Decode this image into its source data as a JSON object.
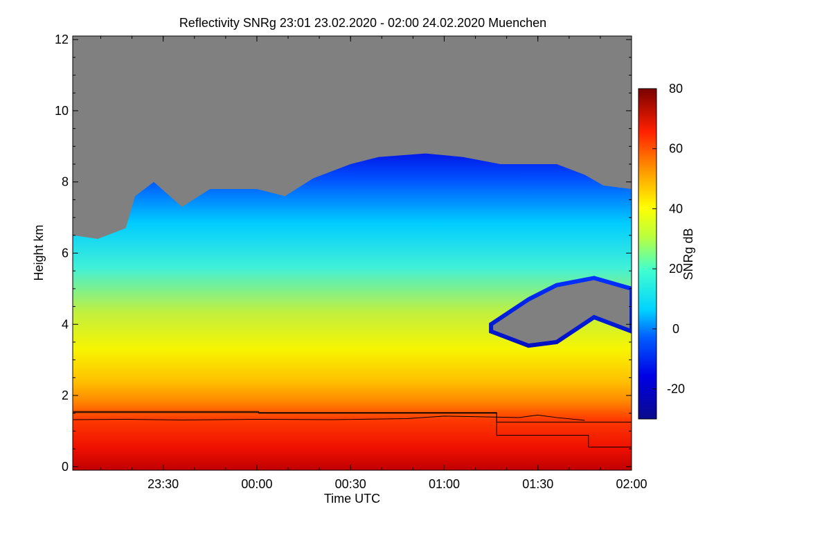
{
  "chart_data": {
    "type": "heatmap",
    "title": "Reflectivity SNRg   23:01 23.02.2020 - 02:00 24.02.2020 Muenchen",
    "xlabel": "Time UTC",
    "ylabel": "Height km",
    "xlim_hours": [
      23.017,
      26.0
    ],
    "x_ticks": [
      {
        "value": 23.5,
        "label": "23:30"
      },
      {
        "value": 24.0,
        "label": "00:00"
      },
      {
        "value": 24.5,
        "label": "00:30"
      },
      {
        "value": 25.0,
        "label": "01:00"
      },
      {
        "value": 25.5,
        "label": "01:30"
      },
      {
        "value": 26.0,
        "label": "02:00"
      }
    ],
    "ylim": [
      -0.1,
      12.1
    ],
    "y_ticks": [
      {
        "value": 0,
        "label": "0"
      },
      {
        "value": 2,
        "label": "2"
      },
      {
        "value": 4,
        "label": "4"
      },
      {
        "value": 6,
        "label": "6"
      },
      {
        "value": 8,
        "label": "8"
      },
      {
        "value": 10,
        "label": "10"
      },
      {
        "value": 12,
        "label": "12"
      }
    ],
    "colorbar": {
      "label": "SNRg dB",
      "range": [
        -30,
        80
      ],
      "ticks": [
        {
          "value": -20,
          "label": "-20"
        },
        {
          "value": 0,
          "label": "0"
        },
        {
          "value": 20,
          "label": "20"
        },
        {
          "value": 40,
          "label": "40"
        },
        {
          "value": 60,
          "label": "60"
        },
        {
          "value": 80,
          "label": "80"
        }
      ]
    },
    "background_color": "#808080",
    "cloud_top_km": [
      [
        23.02,
        6.5
      ],
      [
        23.15,
        6.4
      ],
      [
        23.3,
        6.7
      ],
      [
        23.35,
        7.6
      ],
      [
        23.45,
        8.0
      ],
      [
        23.6,
        7.3
      ],
      [
        23.75,
        7.8
      ],
      [
        23.85,
        7.8
      ],
      [
        24.0,
        7.8
      ],
      [
        24.15,
        7.6
      ],
      [
        24.3,
        8.1
      ],
      [
        24.5,
        8.5
      ],
      [
        24.65,
        8.7
      ],
      [
        24.9,
        8.8
      ],
      [
        25.1,
        8.7
      ],
      [
        25.3,
        8.5
      ],
      [
        25.45,
        8.5
      ],
      [
        25.6,
        8.5
      ],
      [
        25.75,
        8.2
      ],
      [
        25.85,
        7.9
      ],
      [
        26.0,
        7.8
      ]
    ],
    "gap_region_km": {
      "x_start": 25.25,
      "x_end": 26.0,
      "top": [
        [
          25.25,
          4.0
        ],
        [
          25.45,
          4.7
        ],
        [
          25.6,
          5.1
        ],
        [
          25.8,
          5.3
        ],
        [
          26.0,
          5.0
        ]
      ],
      "bottom": [
        [
          25.25,
          3.8
        ],
        [
          25.45,
          3.4
        ],
        [
          25.6,
          3.5
        ],
        [
          25.8,
          4.2
        ],
        [
          26.0,
          3.8
        ]
      ]
    },
    "series": [
      {
        "step": true,
        "points": [
          [
            23.02,
            1.55
          ],
          [
            24.01,
            1.55
          ],
          [
            24.01,
            1.5
          ],
          [
            25.28,
            1.5
          ],
          [
            25.28,
            0.88
          ],
          [
            25.77,
            0.88
          ],
          [
            25.77,
            0.55
          ],
          [
            26.0,
            0.55
          ]
        ]
      },
      {
        "step": true,
        "points": [
          [
            23.02,
            1.52
          ],
          [
            25.28,
            1.52
          ],
          [
            25.28,
            1.25
          ],
          [
            26.0,
            1.25
          ]
        ]
      },
      {
        "points": [
          [
            23.02,
            1.32
          ],
          [
            23.3,
            1.33
          ],
          [
            23.6,
            1.31
          ],
          [
            24.0,
            1.33
          ],
          [
            24.4,
            1.32
          ],
          [
            24.8,
            1.35
          ],
          [
            25.0,
            1.42
          ],
          [
            25.2,
            1.4
          ],
          [
            25.4,
            1.38
          ],
          [
            25.5,
            1.45
          ],
          [
            25.6,
            1.38
          ],
          [
            25.75,
            1.3
          ]
        ]
      }
    ]
  }
}
